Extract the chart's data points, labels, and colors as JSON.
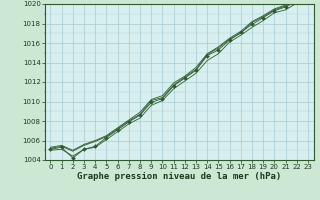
{
  "title": "Graphe pression niveau de la mer (hPa)",
  "bg_color": "#cce8d4",
  "plot_bg_color": "#d8eff0",
  "grid_color": "#b0d0d8",
  "line_color": "#2d5a2d",
  "marker_color": "#2d5a2d",
  "x_values": [
    0,
    1,
    2,
    3,
    4,
    5,
    6,
    7,
    8,
    9,
    10,
    11,
    12,
    13,
    14,
    15,
    16,
    17,
    18,
    19,
    20,
    21,
    22,
    23
  ],
  "y_main": [
    1005.1,
    1005.3,
    1004.2,
    1005.1,
    1005.4,
    1006.3,
    1007.1,
    1007.9,
    1008.6,
    1009.9,
    1010.3,
    1011.6,
    1012.4,
    1013.2,
    1014.7,
    1015.3,
    1016.3,
    1017.1,
    1017.9,
    1018.6,
    1019.3,
    1019.7,
    1020.3,
    1020.5
  ],
  "y_line2": [
    1005.0,
    1005.1,
    1004.4,
    1005.1,
    1005.3,
    1006.1,
    1006.9,
    1007.7,
    1008.3,
    1009.6,
    1010.1,
    1011.3,
    1012.1,
    1012.9,
    1014.2,
    1014.9,
    1016.1,
    1016.8,
    1017.6,
    1018.3,
    1019.1,
    1019.4,
    1020.1,
    1020.3
  ],
  "y_line3": [
    1005.2,
    1005.4,
    1004.9,
    1005.5,
    1005.9,
    1006.4,
    1007.2,
    1008.0,
    1008.7,
    1010.1,
    1010.4,
    1011.7,
    1012.5,
    1013.3,
    1014.8,
    1015.5,
    1016.4,
    1017.0,
    1018.1,
    1018.7,
    1019.4,
    1019.8,
    1020.4,
    1020.6
  ],
  "y_line4": [
    1005.3,
    1005.5,
    1005.0,
    1005.6,
    1006.0,
    1006.5,
    1007.3,
    1008.1,
    1008.9,
    1010.2,
    1010.6,
    1011.9,
    1012.6,
    1013.5,
    1014.9,
    1015.6,
    1016.5,
    1017.2,
    1018.2,
    1018.8,
    1019.5,
    1019.9,
    1020.2,
    1020.4
  ],
  "ylim": [
    1004,
    1020
  ],
  "xlim": [
    -0.5,
    23.5
  ],
  "yticks": [
    1004,
    1006,
    1008,
    1010,
    1012,
    1014,
    1016,
    1018,
    1020
  ],
  "xticks": [
    0,
    1,
    2,
    3,
    4,
    5,
    6,
    7,
    8,
    9,
    10,
    11,
    12,
    13,
    14,
    15,
    16,
    17,
    18,
    19,
    20,
    21,
    22,
    23
  ],
  "title_fontsize": 6.5,
  "tick_fontsize": 5.0
}
